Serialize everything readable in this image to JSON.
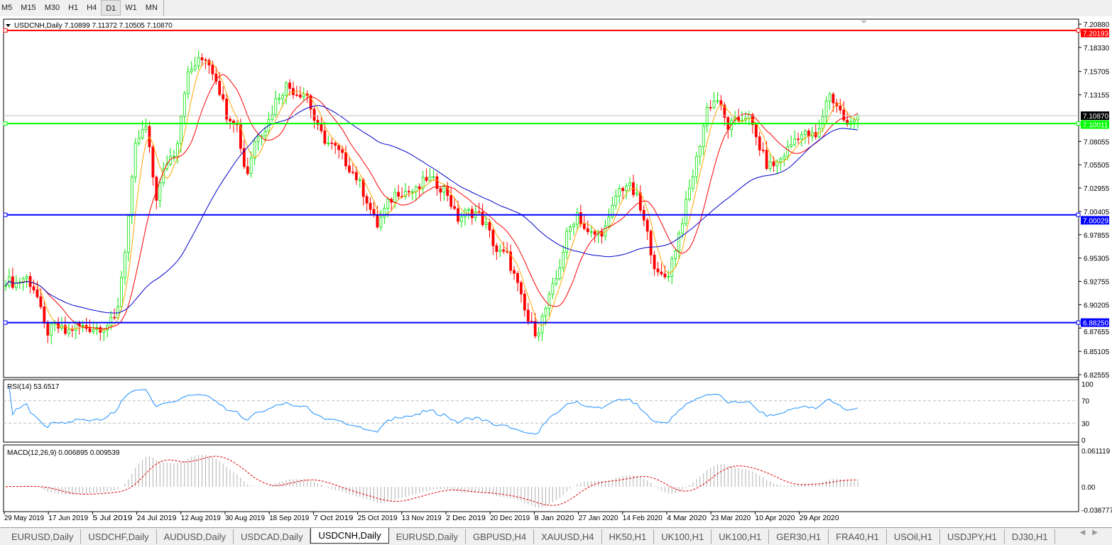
{
  "timeframes": [
    "M5",
    "M15",
    "M30",
    "H1",
    "H4",
    "D1",
    "W1",
    "MN"
  ],
  "active_timeframe": "D1",
  "chart": {
    "symbol_header": "USDCNH,Daily  7.10899 7.11372 7.10505 7.10870",
    "price_ticks": [
      "7.20880",
      "7.18330",
      "7.15705",
      "7.13155",
      "7.08055",
      "7.05505",
      "7.02955",
      "7.00405",
      "6.97855",
      "6.95305",
      "6.92755",
      "6.90205",
      "6.87655",
      "6.85105",
      "6.82555"
    ],
    "price_range": [
      6.82555,
      7.2088
    ],
    "levels": [
      {
        "price": 7.20193,
        "label": "7.20193",
        "color": "#ff0000"
      },
      {
        "price": 7.10011,
        "label": "7.10011",
        "color": "#00ff00"
      },
      {
        "price": 7.00029,
        "label": "7.00029",
        "color": "#0000ff"
      },
      {
        "price": 6.8825,
        "label": "6.88250",
        "color": "#0000ff"
      }
    ],
    "current_price": {
      "price": 7.1087,
      "label": "7.10870"
    },
    "closes": [
      6.929,
      6.925,
      6.933,
      6.917,
      6.871,
      6.879,
      6.871,
      6.879,
      6.877,
      6.877,
      6.879,
      6.886,
      6.972,
      7.08,
      7.096,
      7.018,
      7.057,
      7.072,
      7.15,
      7.166,
      7.173,
      7.15,
      7.111,
      7.103,
      7.041,
      7.088,
      7.096,
      7.127,
      7.142,
      7.134,
      7.134,
      7.096,
      7.08,
      7.072,
      7.057,
      7.041,
      7.018,
      6.987,
      7.01,
      7.026,
      7.026,
      7.026,
      7.041,
      7.034,
      7.026,
      6.995,
      7.003,
      7.003,
      6.987,
      6.96,
      6.956,
      6.925,
      6.886,
      6.871,
      6.902,
      6.933,
      6.979,
      7.003,
      6.979,
      6.979,
      6.987,
      7.026,
      7.034,
      7.018,
      6.979,
      6.933,
      6.933,
      6.972,
      7.018,
      7.065,
      7.119,
      7.127,
      7.096,
      7.103,
      7.111,
      7.08,
      7.053,
      7.057,
      7.072,
      7.088,
      7.088,
      7.084,
      7.134,
      7.119,
      7.096,
      7.1087
    ],
    "colors": {
      "bull": "#00e600",
      "bear": "#ff0000",
      "ma_fast": "#ffa500",
      "ma_mid": "#ff0000",
      "ma_slow": "#0000cc"
    }
  },
  "rsi": {
    "label": "RSI(14) 53.6517",
    "ticks": [
      "100",
      "70",
      "30",
      "0"
    ]
  },
  "macd": {
    "label": "MACD(12,26,9) 0.006895 0.009539",
    "ticks": [
      "0.061119",
      "0.00",
      "-0.038777"
    ]
  },
  "time_labels": [
    "29 May 2019",
    "17 Jun 2019",
    "5 Jul 2019",
    "24 Jul 2019",
    "12 Aug 2019",
    "30 Aug 2019",
    "18 Sep 2019",
    "7 Oct 2019",
    "25 Oct 2019",
    "13 Nov 2019",
    "2 Dec 2019",
    "20 Dec 2019",
    "8 Jan 2020",
    "27 Jan 2020",
    "14 Feb 2020",
    "4 Mar 2020",
    "23 Mar 2020",
    "10 Apr 2020",
    "29 Apr 2020"
  ],
  "tabs": [
    "EURUSD,Daily",
    "USDCHF,Daily",
    "AUDUSD,Daily",
    "USDCAD,Daily",
    "USDCNH,Daily",
    "EURUSD,Daily",
    "GBPUSD,H4",
    "XAUUSD,H4",
    "HK50,H1",
    "UK100,H1",
    "UK100,H1",
    "GER30,H1",
    "FRA40,H1",
    "USOil,H1",
    "USDJPY,H1",
    "DJ30,H1"
  ],
  "active_tab": "USDCNH,Daily"
}
